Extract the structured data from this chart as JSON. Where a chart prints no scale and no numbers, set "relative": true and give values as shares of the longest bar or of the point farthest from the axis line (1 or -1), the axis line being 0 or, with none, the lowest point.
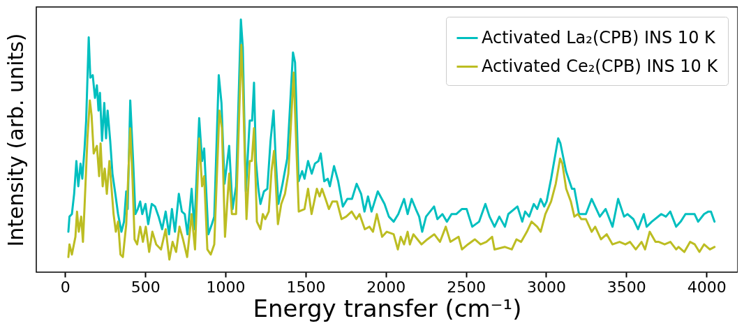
{
  "chart_data": {
    "type": "line",
    "xlabel": "Energy transfer  (cm⁻¹)",
    "ylabel": "Intensity (arb. units)",
    "relative": true,
    "legend": "top right",
    "grid": false,
    "xlim": [
      -180,
      4195
    ],
    "xticks": [
      0,
      500,
      1000,
      1500,
      2000,
      2500,
      3000,
      3500,
      4000
    ],
    "series": [
      {
        "name": "Activated La₂(CPB) INS 10 K",
        "color": "#00bfbf",
        "x": [
          20,
          27,
          42,
          56,
          70,
          82,
          96,
          107,
          121,
          131,
          147,
          157,
          172,
          186,
          198,
          208,
          217,
          230,
          244,
          255,
          265,
          281,
          295,
          313,
          330,
          351,
          367,
          381,
          390,
          406,
          424,
          438,
          453,
          468,
          481,
          501,
          518,
          540,
          561,
          583,
          605,
          627,
          648,
          666,
          685,
          709,
          728,
          746,
          763,
          789,
          806,
          836,
          854,
          867,
          893,
          915,
          930,
          958,
          975,
          994,
          1023,
          1044,
          1066,
          1096,
          1108,
          1127,
          1151,
          1166,
          1178,
          1190,
          1205,
          1218,
          1240,
          1261,
          1281,
          1300,
          1313,
          1330,
          1356,
          1385,
          1421,
          1434,
          1456,
          1478,
          1493,
          1515,
          1538,
          1558,
          1580,
          1594,
          1616,
          1638,
          1651,
          1677,
          1703,
          1732,
          1760,
          1789,
          1818,
          1846,
          1867,
          1889,
          1911,
          1950,
          1992,
          2019,
          2049,
          2078,
          2114,
          2136,
          2161,
          2187,
          2208,
          2227,
          2251,
          2301,
          2322,
          2353,
          2381,
          2410,
          2439,
          2474,
          2504,
          2539,
          2582,
          2621,
          2647,
          2678,
          2708,
          2743,
          2764,
          2821,
          2851,
          2869,
          2894,
          2923,
          2944,
          2966,
          2988,
          3003,
          3031,
          3075,
          3089,
          3124,
          3161,
          3176,
          3205,
          3248,
          3284,
          3335,
          3371,
          3414,
          3449,
          3486,
          3508,
          3544,
          3573,
          3609,
          3627,
          3659,
          3718,
          3747,
          3774,
          3811,
          3839,
          3869,
          3898,
          3926,
          3948,
          3985,
          4012,
          4028,
          4050
        ],
        "values": [
          0.16,
          0.22,
          0.23,
          0.31,
          0.44,
          0.34,
          0.43,
          0.37,
          0.49,
          0.6,
          0.93,
          0.77,
          0.78,
          0.69,
          0.74,
          0.64,
          0.71,
          0.52,
          0.67,
          0.53,
          0.64,
          0.52,
          0.39,
          0.31,
          0.23,
          0.16,
          0.2,
          0.32,
          0.25,
          0.68,
          0.44,
          0.23,
          0.25,
          0.28,
          0.23,
          0.27,
          0.19,
          0.27,
          0.26,
          0.22,
          0.17,
          0.24,
          0.15,
          0.25,
          0.16,
          0.31,
          0.24,
          0.23,
          0.15,
          0.33,
          0.17,
          0.61,
          0.44,
          0.49,
          0.15,
          0.19,
          0.22,
          0.78,
          0.67,
          0.35,
          0.5,
          0.25,
          0.34,
          1,
          0.89,
          0.32,
          0.6,
          0.6,
          0.75,
          0.44,
          0.33,
          0.27,
          0.32,
          0.33,
          0.52,
          0.64,
          0.45,
          0.27,
          0.35,
          0.45,
          0.87,
          0.83,
          0.36,
          0.4,
          0.37,
          0.44,
          0.39,
          0.43,
          0.44,
          0.47,
          0.36,
          0.37,
          0.34,
          0.42,
          0.36,
          0.26,
          0.29,
          0.29,
          0.35,
          0.31,
          0.24,
          0.3,
          0.24,
          0.32,
          0.27,
          0.22,
          0.2,
          0.23,
          0.29,
          0.23,
          0.29,
          0.25,
          0.22,
          0.16,
          0.22,
          0.26,
          0.21,
          0.23,
          0.2,
          0.23,
          0.23,
          0.25,
          0.25,
          0.18,
          0.2,
          0.27,
          0.22,
          0.18,
          0.22,
          0.18,
          0.23,
          0.26,
          0.2,
          0.24,
          0.22,
          0.27,
          0.25,
          0.29,
          0.26,
          0.28,
          0.37,
          0.53,
          0.51,
          0.4,
          0.33,
          0.33,
          0.23,
          0.23,
          0.29,
          0.22,
          0.25,
          0.18,
          0.29,
          0.22,
          0.23,
          0.21,
          0.17,
          0.23,
          0.18,
          0.2,
          0.23,
          0.22,
          0.24,
          0.18,
          0.2,
          0.23,
          0.23,
          0.23,
          0.2,
          0.23,
          0.24,
          0.24,
          0.2
        ]
      },
      {
        "name": "Activated Ce₂(CPB) INS 10 K",
        "color": "#bcbd22",
        "x": [
          20,
          27,
          42,
          64,
          74,
          85,
          100,
          111,
          121,
          139,
          154,
          165,
          178,
          198,
          212,
          221,
          234,
          247,
          260,
          276,
          302,
          316,
          330,
          345,
          360,
          381,
          406,
          420,
          433,
          449,
          468,
          485,
          503,
          524,
          544,
          568,
          598,
          627,
          650,
          670,
          692,
          713,
          735,
          761,
          789,
          810,
          836,
          854,
          867,
          887,
          908,
          930,
          962,
          978,
          997,
          1023,
          1040,
          1066,
          1099,
          1109,
          1131,
          1151,
          1164,
          1178,
          1196,
          1218,
          1233,
          1248,
          1270,
          1287,
          1303,
          1327,
          1348,
          1371,
          1392,
          1425,
          1457,
          1493,
          1515,
          1537,
          1570,
          1587,
          1602,
          1624,
          1645,
          1667,
          1695,
          1724,
          1753,
          1787,
          1816,
          1836,
          1869,
          1898,
          1920,
          1944,
          1977,
          2006,
          2049,
          2075,
          2093,
          2114,
          2136,
          2150,
          2172,
          2223,
          2259,
          2302,
          2338,
          2374,
          2403,
          2454,
          2475,
          2512,
          2555,
          2591,
          2627,
          2663,
          2678,
          2743,
          2786,
          2815,
          2844,
          2880,
          2909,
          2944,
          2966,
          2995,
          3031,
          3060,
          3087,
          3101,
          3125,
          3154,
          3176,
          3198,
          3219,
          3248,
          3284,
          3306,
          3342,
          3378,
          3414,
          3458,
          3494,
          3523,
          3559,
          3595,
          3617,
          3646,
          3682,
          3703,
          3739,
          3775,
          3811,
          3826,
          3862,
          3898,
          3927,
          3956,
          3985,
          4021,
          4050
        ],
        "values": [
          0.06,
          0.11,
          0.07,
          0.14,
          0.24,
          0.16,
          0.22,
          0.12,
          0.26,
          0.53,
          0.68,
          0.62,
          0.47,
          0.5,
          0.38,
          0.51,
          0.34,
          0.41,
          0.31,
          0.44,
          0.23,
          0.16,
          0.2,
          0.07,
          0.06,
          0.19,
          0.57,
          0.37,
          0.13,
          0.11,
          0.18,
          0.12,
          0.18,
          0.08,
          0.16,
          0.11,
          0.09,
          0.17,
          0.05,
          0.12,
          0.08,
          0.18,
          0.13,
          0.06,
          0.23,
          0.09,
          0.53,
          0.34,
          0.38,
          0.09,
          0.07,
          0.11,
          0.64,
          0.57,
          0.14,
          0.39,
          0.23,
          0.23,
          0.9,
          0.73,
          0.21,
          0.44,
          0.44,
          0.57,
          0.2,
          0.17,
          0.23,
          0.21,
          0.24,
          0.4,
          0.48,
          0.19,
          0.27,
          0.31,
          0.39,
          0.79,
          0.24,
          0.25,
          0.33,
          0.23,
          0.33,
          0.3,
          0.33,
          0.29,
          0.25,
          0.28,
          0.28,
          0.21,
          0.22,
          0.24,
          0.21,
          0.23,
          0.17,
          0.18,
          0.16,
          0.23,
          0.14,
          0.16,
          0.15,
          0.09,
          0.14,
          0.11,
          0.16,
          0.11,
          0.15,
          0.11,
          0.13,
          0.15,
          0.12,
          0.18,
          0.12,
          0.14,
          0.09,
          0.11,
          0.13,
          0.11,
          0.12,
          0.14,
          0.09,
          0.1,
          0.09,
          0.13,
          0.12,
          0.16,
          0.2,
          0.18,
          0.16,
          0.23,
          0.28,
          0.35,
          0.45,
          0.43,
          0.33,
          0.28,
          0.22,
          0.23,
          0.21,
          0.21,
          0.16,
          0.18,
          0.13,
          0.15,
          0.11,
          0.12,
          0.11,
          0.12,
          0.09,
          0.12,
          0.09,
          0.16,
          0.12,
          0.12,
          0.11,
          0.12,
          0.09,
          0.1,
          0.08,
          0.12,
          0.11,
          0.08,
          0.11,
          0.09,
          0.1
        ]
      }
    ]
  }
}
